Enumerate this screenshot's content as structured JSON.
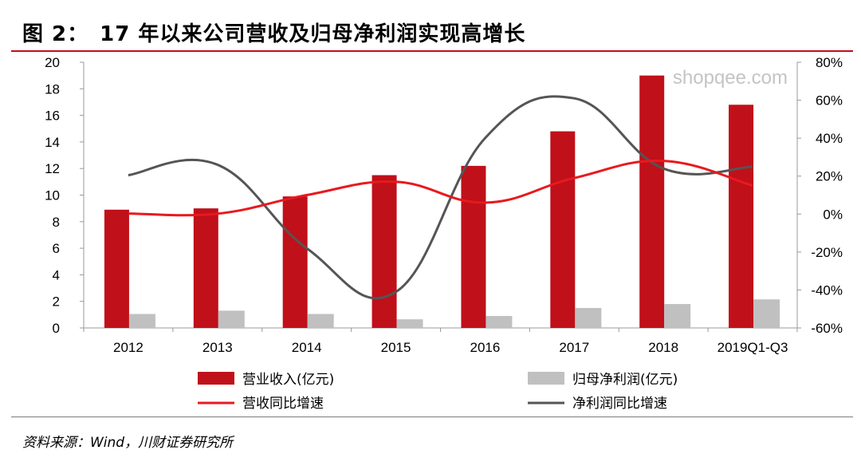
{
  "figure": {
    "number": "图 2：",
    "title": "17 年以来公司营收及归母净利润实现高增长"
  },
  "source": "资料来源：Wind，川财证券研究所",
  "watermark": "shopqee.com",
  "colors": {
    "revenue_bar": "#c0101a",
    "profit_bar": "#c0c0c0",
    "revenue_growth_line": "#e8191f",
    "profit_growth_line": "#555555",
    "title_rule": "#c0101a"
  },
  "chart_data": {
    "type": "bar",
    "categories": [
      "2012",
      "2013",
      "2014",
      "2015",
      "2016",
      "2017",
      "2018",
      "2019Q1-Q3"
    ],
    "left_axis": {
      "ylim": [
        0,
        20
      ],
      "ticks": [
        0,
        2,
        4,
        6,
        8,
        10,
        12,
        14,
        16,
        18,
        20
      ]
    },
    "right_axis": {
      "ylim": [
        -60,
        80
      ],
      "ticks": [
        "-60%",
        "-40%",
        "-20%",
        "0%",
        "20%",
        "40%",
        "60%",
        "80%"
      ],
      "values": [
        -60,
        -40,
        -20,
        0,
        20,
        40,
        60,
        80
      ]
    },
    "series": [
      {
        "name": "营业收入(亿元)",
        "kind": "bar",
        "axis": "left",
        "values": [
          8.9,
          9.0,
          9.9,
          11.5,
          12.2,
          14.8,
          19.0,
          16.8
        ]
      },
      {
        "name": "归母净利润(亿元)",
        "kind": "bar",
        "axis": "left",
        "values": [
          1.05,
          1.3,
          1.05,
          0.65,
          0.9,
          1.5,
          1.8,
          2.15
        ]
      },
      {
        "name": "营收同比增速",
        "kind": "line",
        "axis": "right",
        "unit": "%",
        "values": [
          0.3,
          0.2,
          10,
          17,
          6,
          19,
          28,
          15
        ]
      },
      {
        "name": "净利润同比增速",
        "kind": "line",
        "axis": "right",
        "unit": "%",
        "values": [
          20.5,
          26,
          -18,
          -41,
          40,
          61,
          24,
          25
        ]
      }
    ],
    "legend_placement": "bottom",
    "grid": false
  }
}
